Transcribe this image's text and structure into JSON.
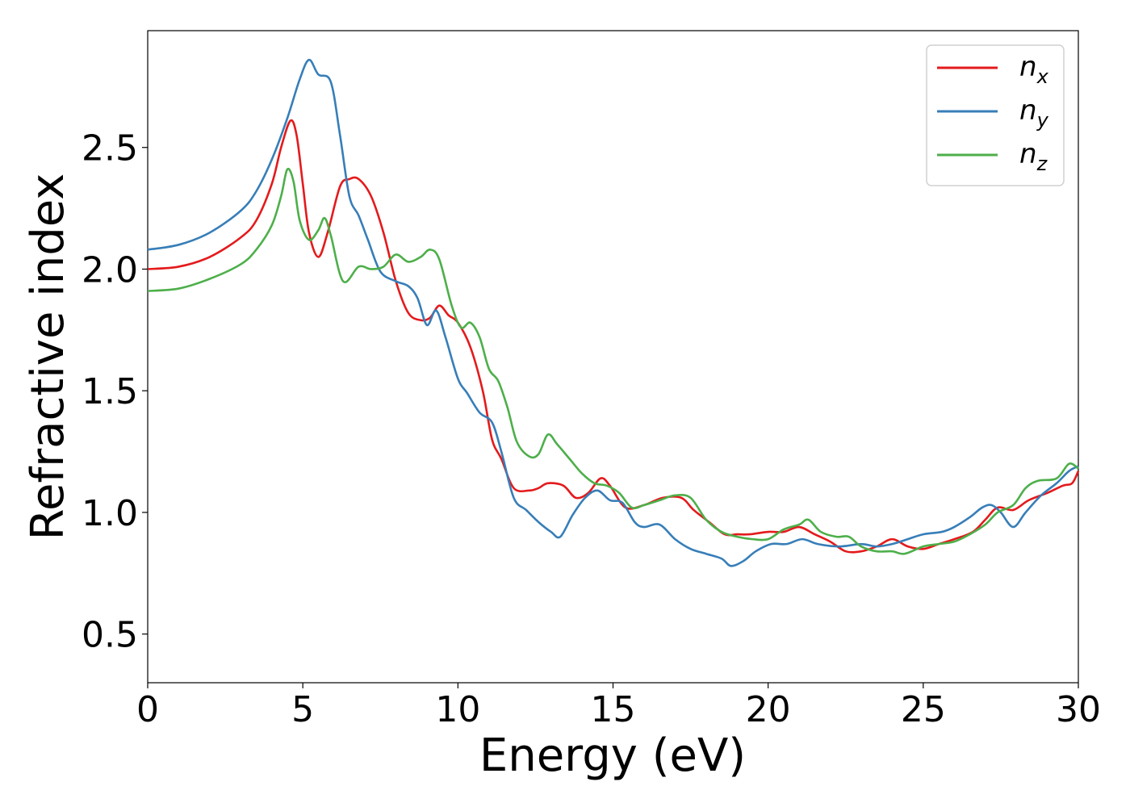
{
  "chart_data": {
    "type": "line",
    "title": "",
    "xlabel": "Energy (eV)",
    "ylabel": "Refractive index",
    "xlim": [
      0,
      30
    ],
    "ylim": [
      0.3,
      2.98
    ],
    "xticks": [
      0,
      5,
      10,
      15,
      20,
      25,
      30
    ],
    "yticks": [
      0.5,
      1.0,
      1.5,
      2.0,
      2.5
    ],
    "xtick_labels": [
      "0",
      "5",
      "10",
      "15",
      "20",
      "25",
      "30"
    ],
    "ytick_labels": [
      "0.5",
      "1.0",
      "1.5",
      "2.0",
      "2.5"
    ],
    "grid": false,
    "legend_position": "top-right",
    "series": [
      {
        "name": "n",
        "subscript": "x",
        "color": "#e41a1c",
        "points": [
          [
            0,
            2.0
          ],
          [
            1,
            2.01
          ],
          [
            2,
            2.05
          ],
          [
            3,
            2.13
          ],
          [
            3.5,
            2.2
          ],
          [
            4,
            2.35
          ],
          [
            4.3,
            2.5
          ],
          [
            4.6,
            2.61
          ],
          [
            4.8,
            2.55
          ],
          [
            5,
            2.35
          ],
          [
            5.2,
            2.15
          ],
          [
            5.5,
            2.05
          ],
          [
            5.8,
            2.15
          ],
          [
            6.2,
            2.34
          ],
          [
            6.5,
            2.37
          ],
          [
            6.8,
            2.37
          ],
          [
            7.2,
            2.3
          ],
          [
            7.6,
            2.15
          ],
          [
            8,
            1.95
          ],
          [
            8.4,
            1.82
          ],
          [
            8.8,
            1.79
          ],
          [
            9.1,
            1.8
          ],
          [
            9.4,
            1.85
          ],
          [
            9.7,
            1.81
          ],
          [
            10,
            1.78
          ],
          [
            10.4,
            1.68
          ],
          [
            10.8,
            1.5
          ],
          [
            11.1,
            1.3
          ],
          [
            11.4,
            1.22
          ],
          [
            11.8,
            1.1
          ],
          [
            12.3,
            1.09
          ],
          [
            12.6,
            1.1
          ],
          [
            12.9,
            1.12
          ],
          [
            13.4,
            1.11
          ],
          [
            13.8,
            1.06
          ],
          [
            14.2,
            1.08
          ],
          [
            14.6,
            1.14
          ],
          [
            14.9,
            1.11
          ],
          [
            15.4,
            1.02
          ],
          [
            16,
            1.03
          ],
          [
            16.6,
            1.06
          ],
          [
            17.2,
            1.06
          ],
          [
            17.6,
            1.01
          ],
          [
            18.1,
            0.96
          ],
          [
            18.6,
            0.91
          ],
          [
            19,
            0.91
          ],
          [
            19.4,
            0.91
          ],
          [
            20,
            0.92
          ],
          [
            20.5,
            0.92
          ],
          [
            21,
            0.94
          ],
          [
            21.5,
            0.91
          ],
          [
            22,
            0.88
          ],
          [
            22.5,
            0.84
          ],
          [
            23,
            0.84
          ],
          [
            23.5,
            0.86
          ],
          [
            24,
            0.89
          ],
          [
            24.5,
            0.86
          ],
          [
            25,
            0.85
          ],
          [
            25.5,
            0.87
          ],
          [
            26,
            0.89
          ],
          [
            26.6,
            0.92
          ],
          [
            27,
            0.97
          ],
          [
            27.4,
            1.02
          ],
          [
            27.9,
            1.01
          ],
          [
            28.4,
            1.05
          ],
          [
            29,
            1.08
          ],
          [
            29.5,
            1.11
          ],
          [
            29.8,
            1.12
          ],
          [
            30,
            1.17
          ]
        ]
      },
      {
        "name": "n",
        "subscript": "y",
        "color": "#377eb8",
        "points": [
          [
            0,
            2.08
          ],
          [
            1,
            2.1
          ],
          [
            2,
            2.15
          ],
          [
            3,
            2.24
          ],
          [
            3.5,
            2.32
          ],
          [
            4,
            2.45
          ],
          [
            4.5,
            2.62
          ],
          [
            4.9,
            2.78
          ],
          [
            5.2,
            2.86
          ],
          [
            5.5,
            2.8
          ],
          [
            5.9,
            2.77
          ],
          [
            6.2,
            2.55
          ],
          [
            6.5,
            2.3
          ],
          [
            6.8,
            2.22
          ],
          [
            7.1,
            2.12
          ],
          [
            7.5,
            1.99
          ],
          [
            8,
            1.95
          ],
          [
            8.4,
            1.93
          ],
          [
            8.7,
            1.88
          ],
          [
            9,
            1.77
          ],
          [
            9.3,
            1.83
          ],
          [
            9.6,
            1.72
          ],
          [
            10,
            1.55
          ],
          [
            10.3,
            1.49
          ],
          [
            10.7,
            1.41
          ],
          [
            11.1,
            1.37
          ],
          [
            11.4,
            1.25
          ],
          [
            11.8,
            1.06
          ],
          [
            12.2,
            1.01
          ],
          [
            12.6,
            0.96
          ],
          [
            13,
            0.92
          ],
          [
            13.3,
            0.9
          ],
          [
            13.7,
            0.99
          ],
          [
            14.1,
            1.06
          ],
          [
            14.5,
            1.09
          ],
          [
            14.9,
            1.05
          ],
          [
            15.3,
            1.04
          ],
          [
            15.7,
            0.96
          ],
          [
            16,
            0.94
          ],
          [
            16.5,
            0.95
          ],
          [
            17,
            0.89
          ],
          [
            17.5,
            0.85
          ],
          [
            18,
            0.83
          ],
          [
            18.5,
            0.81
          ],
          [
            18.8,
            0.78
          ],
          [
            19.2,
            0.8
          ],
          [
            19.6,
            0.84
          ],
          [
            20.1,
            0.87
          ],
          [
            20.6,
            0.87
          ],
          [
            21.1,
            0.89
          ],
          [
            21.6,
            0.87
          ],
          [
            22.3,
            0.86
          ],
          [
            23,
            0.87
          ],
          [
            23.5,
            0.86
          ],
          [
            24,
            0.87
          ],
          [
            24.5,
            0.89
          ],
          [
            25,
            0.91
          ],
          [
            25.6,
            0.92
          ],
          [
            26,
            0.94
          ],
          [
            26.5,
            0.98
          ],
          [
            26.9,
            1.02
          ],
          [
            27.2,
            1.03
          ],
          [
            27.5,
            1.0
          ],
          [
            27.9,
            0.94
          ],
          [
            28.3,
            1.0
          ],
          [
            28.8,
            1.07
          ],
          [
            29.3,
            1.12
          ],
          [
            29.7,
            1.17
          ],
          [
            30,
            1.19
          ]
        ]
      },
      {
        "name": "n",
        "subscript": "z",
        "color": "#4daf4a",
        "points": [
          [
            0,
            1.91
          ],
          [
            1,
            1.92
          ],
          [
            2,
            1.96
          ],
          [
            3,
            2.02
          ],
          [
            3.5,
            2.08
          ],
          [
            4,
            2.18
          ],
          [
            4.3,
            2.3
          ],
          [
            4.5,
            2.41
          ],
          [
            4.7,
            2.36
          ],
          [
            4.9,
            2.2
          ],
          [
            5.2,
            2.12
          ],
          [
            5.5,
            2.16
          ],
          [
            5.7,
            2.21
          ],
          [
            5.9,
            2.14
          ],
          [
            6.3,
            1.95
          ],
          [
            6.8,
            2.01
          ],
          [
            7.2,
            2.0
          ],
          [
            7.6,
            2.01
          ],
          [
            8,
            2.06
          ],
          [
            8.4,
            2.03
          ],
          [
            8.8,
            2.05
          ],
          [
            9.1,
            2.08
          ],
          [
            9.4,
            2.04
          ],
          [
            9.8,
            1.85
          ],
          [
            10.1,
            1.76
          ],
          [
            10.4,
            1.78
          ],
          [
            10.7,
            1.72
          ],
          [
            11,
            1.59
          ],
          [
            11.3,
            1.54
          ],
          [
            11.6,
            1.43
          ],
          [
            11.9,
            1.29
          ],
          [
            12.3,
            1.23
          ],
          [
            12.6,
            1.24
          ],
          [
            12.9,
            1.32
          ],
          [
            13.2,
            1.28
          ],
          [
            13.6,
            1.22
          ],
          [
            14,
            1.16
          ],
          [
            14.4,
            1.12
          ],
          [
            14.8,
            1.11
          ],
          [
            15.2,
            1.08
          ],
          [
            15.6,
            1.02
          ],
          [
            16,
            1.03
          ],
          [
            16.5,
            1.05
          ],
          [
            17,
            1.07
          ],
          [
            17.5,
            1.06
          ],
          [
            18,
            0.97
          ],
          [
            18.5,
            0.92
          ],
          [
            19,
            0.9
          ],
          [
            19.5,
            0.89
          ],
          [
            20,
            0.89
          ],
          [
            20.5,
            0.93
          ],
          [
            21,
            0.95
          ],
          [
            21.3,
            0.97
          ],
          [
            21.7,
            0.92
          ],
          [
            22.2,
            0.9
          ],
          [
            22.6,
            0.9
          ],
          [
            23,
            0.86
          ],
          [
            23.5,
            0.84
          ],
          [
            24,
            0.84
          ],
          [
            24.4,
            0.83
          ],
          [
            25,
            0.86
          ],
          [
            25.5,
            0.87
          ],
          [
            26,
            0.88
          ],
          [
            26.5,
            0.91
          ],
          [
            27,
            0.95
          ],
          [
            27.4,
            1.0
          ],
          [
            27.9,
            1.03
          ],
          [
            28.3,
            1.1
          ],
          [
            28.7,
            1.13
          ],
          [
            29.3,
            1.14
          ],
          [
            29.7,
            1.2
          ],
          [
            30,
            1.18
          ]
        ]
      }
    ]
  }
}
